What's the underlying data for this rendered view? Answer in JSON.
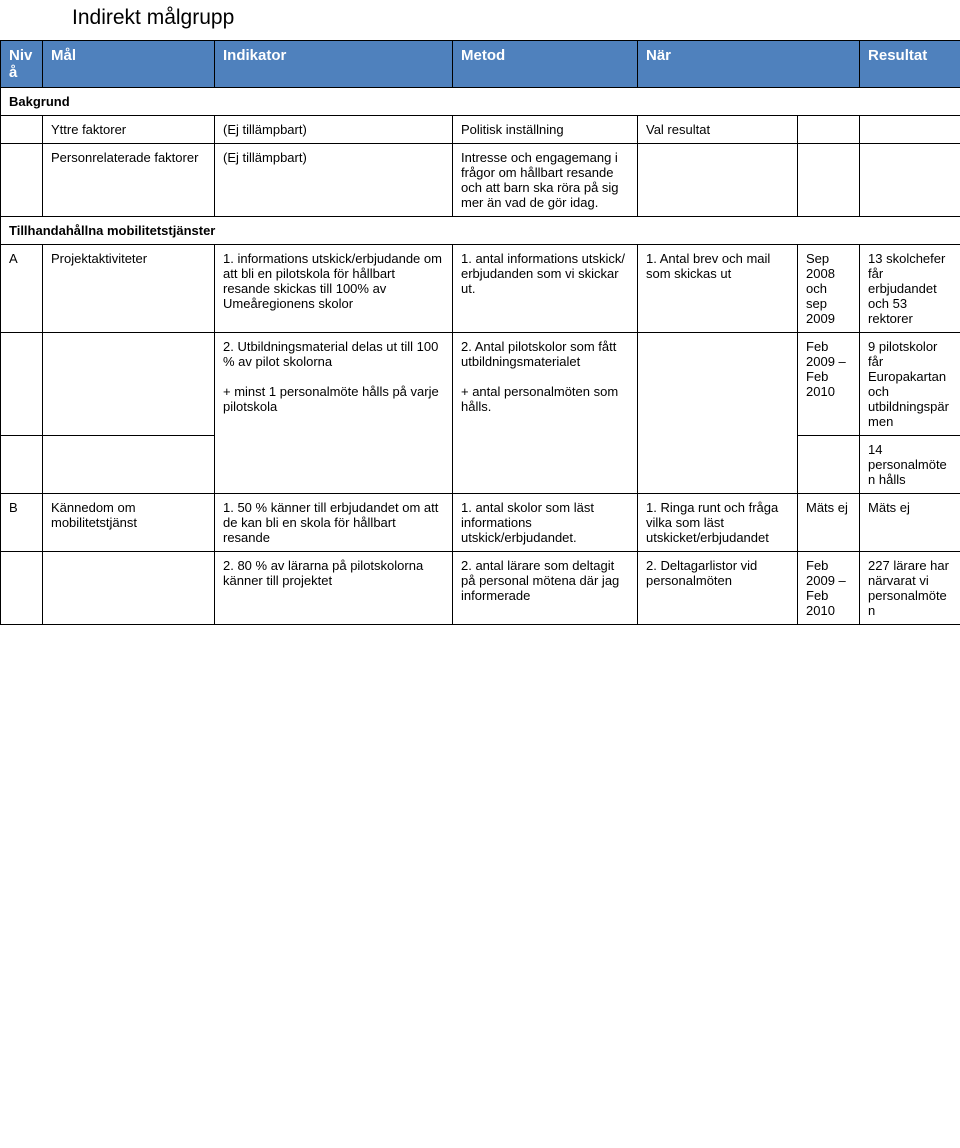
{
  "title": "Indirekt målgrupp",
  "headers": {
    "niva": "Nivå",
    "mal": "Mål",
    "indikator": "Indikator",
    "metod": "Metod",
    "nar": "När",
    "resultat": "Resultat"
  },
  "sections": {
    "bakgrund": "Bakgrund",
    "mobtj": "Tillhandahållna mobilitetstjänster"
  },
  "rows": {
    "yttre": {
      "a": "",
      "b": "Yttre faktorer",
      "c": "(Ej tillämpbart)",
      "d": "Politisk inställning",
      "e": "Val resultat",
      "f": "",
      "g": ""
    },
    "personrel": {
      "a": "",
      "b": "Personrelaterade faktorer",
      "c": "(Ej tillämpbart)",
      "d": "Intresse och engagemang i frågor om hållbart resande och att barn ska röra på sig mer än vad de gör idag.",
      "e": "",
      "f": "",
      "g": ""
    },
    "projA1": {
      "a": "A",
      "b": "Projektaktiviteter",
      "c": "1. informations utskick/erbjudande om att bli en pilotskola för hållbart resande skickas till 100% av Umeåregionens skolor",
      "d": "1. antal informations utskick/ erbjudanden som vi skickar ut.",
      "e": "1. Antal brev och mail som skickas ut",
      "f": "Sep 2008 och sep 2009",
      "g": "13 skolchefer får erbjudandet och 53 rektorer"
    },
    "projA2a": {
      "c": "2. Utbildningsmaterial delas ut till 100 % av pilot skolorna\n\n+ minst 1 personalmöte hålls på varje pilotskola",
      "d": "2. Antal pilotskolor som fått utbildningsmaterialet\n\n+ antal personalmöten som hålls.",
      "f": "Feb 2009 – Feb 2010",
      "g": "9 pilotskolor får Europakartan och utbildningspärmen"
    },
    "projA2b": {
      "g": "14 personalmöten hålls"
    },
    "kannB1": {
      "a": "B",
      "b": "Kännedom om mobilitetstjänst",
      "c": "1. 50 % känner till erbjudandet om att de kan bli en skola för hållbart resande",
      "d": "1. antal skolor som läst informations utskick/erbjudandet.",
      "e": "1. Ringa runt och fråga vilka som läst utskicket/erbjudandet",
      "f": "Mäts ej",
      "g": "Mäts ej"
    },
    "kannB2": {
      "c": "2. 80 % av lärarna på pilotskolorna känner till projektet",
      "d": "2. antal lärare som deltagit på personal mötena där jag informerade",
      "e": "2. Deltagarlistor vid personalmöten",
      "f": "Feb 2009 – Feb 2010",
      "g": " 227 lärare har närvarat vi personalmöten"
    }
  }
}
